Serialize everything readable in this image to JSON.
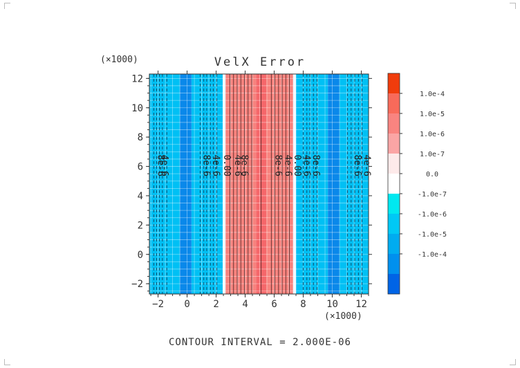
{
  "chart_data": {
    "type": "heatmap",
    "title": "VelX Error",
    "x_multiplier": "(×1000)",
    "y_multiplier": "(×1000)",
    "x_ticks": [
      "-2",
      "0",
      "2",
      "4",
      "6",
      "8",
      "10",
      "12"
    ],
    "y_ticks": [
      "-2",
      "0",
      "2",
      "4",
      "6",
      "8",
      "10",
      "12"
    ],
    "xlim": [
      -2.6,
      12.5
    ],
    "ylim": [
      -2.7,
      12.3
    ],
    "grid": true,
    "footer": "CONTOUR INTERVAL = 2.000E-06",
    "colorbar": {
      "labels": [
        "1.0e-4",
        "1.0e-5",
        "1.0e-6",
        "1.0e-7",
        "0.0",
        "-1.0e-7",
        "-1.0e-6",
        "-1.0e-5",
        "-1.0e-4"
      ],
      "colors": [
        "#f03c0c",
        "#f86a5a",
        "#f98480",
        "#fba5a5",
        "#fdeaea",
        "#ffffff",
        "#00e8f0",
        "#00c8f5",
        "#00acf0",
        "#0090ee",
        "#0064e6"
      ]
    },
    "bands": [
      {
        "x0": -2.6,
        "x1": -0.5,
        "color": "#00c0f4"
      },
      {
        "x0": -0.5,
        "x1": 0.3,
        "color": "#0a88ea"
      },
      {
        "x0": 0.3,
        "x1": 2.45,
        "color": "#00c0f4"
      },
      {
        "x0": 2.45,
        "x1": 2.65,
        "color": "#f0f8ff"
      },
      {
        "x0": 2.65,
        "x1": 4.75,
        "color": "#f7837e"
      },
      {
        "x0": 4.75,
        "x1": 5.45,
        "color": "#f5676a"
      },
      {
        "x0": 5.45,
        "x1": 7.3,
        "color": "#f7837e"
      },
      {
        "x0": 7.3,
        "x1": 7.5,
        "color": "#f0f8ff"
      },
      {
        "x0": 7.5,
        "x1": 9.7,
        "color": "#00c0f4"
      },
      {
        "x0": 9.7,
        "x1": 10.5,
        "color": "#0a88ea"
      },
      {
        "x0": 10.5,
        "x1": 12.5,
        "color": "#00c0f4"
      }
    ],
    "solid_contours_x": [
      2.95,
      3.2,
      3.45,
      3.7,
      3.95,
      4.2,
      4.45,
      5.1,
      5.8,
      6.05,
      6.3,
      6.55,
      6.8,
      7.05
    ],
    "dashed_contours_x": [
      -2.3,
      -2.1,
      -1.9,
      -1.7,
      -1.4,
      0.9,
      1.15,
      1.35,
      1.6,
      1.8,
      2.05,
      8.0,
      8.25,
      8.45,
      8.7,
      8.95,
      11.05,
      11.3,
      11.55,
      11.8,
      12.05
    ],
    "contour_labels": [
      {
        "text": "8e-6",
        "x": -2.0,
        "y": 6.8
      },
      {
        "text": "4e-6",
        "x": -1.75,
        "y": 6.8
      },
      {
        "text": "8e-6",
        "x": 1.15,
        "y": 6.8
      },
      {
        "text": "4e-6",
        "x": 1.8,
        "y": 6.8
      },
      {
        "text": "0.00",
        "x": 2.55,
        "y": 6.8
      },
      {
        "text": "4e-6",
        "x": 3.3,
        "y": 6.8
      },
      {
        "text": "8e-6",
        "x": 3.75,
        "y": 6.8
      },
      {
        "text": "8e-6",
        "x": 6.1,
        "y": 6.8
      },
      {
        "text": "4e-6",
        "x": 6.75,
        "y": 6.8
      },
      {
        "text": "0.00",
        "x": 7.4,
        "y": 6.8
      },
      {
        "text": "4e-6",
        "x": 8.05,
        "y": 6.8
      },
      {
        "text": "8e-6",
        "x": 8.7,
        "y": 6.8
      },
      {
        "text": "8e-6",
        "x": 11.55,
        "y": 6.8
      },
      {
        "text": "4e-6",
        "x": 12.2,
        "y": 6.8
      }
    ]
  }
}
